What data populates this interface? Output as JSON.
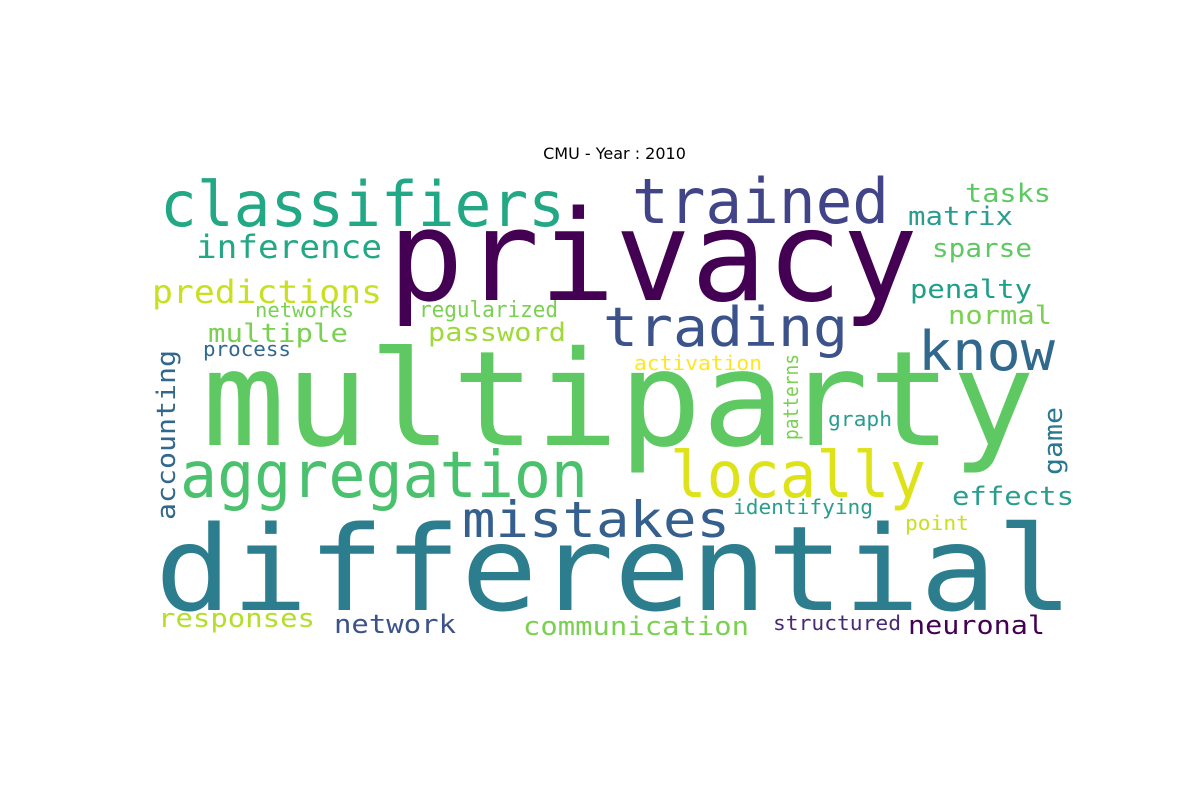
{
  "title": "CMU - Year : 2010",
  "words": [
    {
      "text": "classifiers",
      "color": "#22a884"
    },
    {
      "text": "trained",
      "color": "#414487"
    },
    {
      "text": "tasks",
      "color": "#5ec962"
    },
    {
      "text": "matrix",
      "color": "#2a9d8f"
    },
    {
      "text": "privacy",
      "color": "#440154"
    },
    {
      "text": "inference",
      "color": "#22a884"
    },
    {
      "text": "sparse",
      "color": "#5ec962"
    },
    {
      "text": "predictions",
      "color": "#c8e020"
    },
    {
      "text": "penalty",
      "color": "#1f9e89"
    },
    {
      "text": "regularized",
      "color": "#7ad151"
    },
    {
      "text": "networks",
      "color": "#7ad151"
    },
    {
      "text": "trading",
      "color": "#3b528b"
    },
    {
      "text": "normal",
      "color": "#7ad151"
    },
    {
      "text": "multiple",
      "color": "#7ad151"
    },
    {
      "text": "password",
      "color": "#a0da39"
    },
    {
      "text": "process",
      "color": "#31688e"
    },
    {
      "text": "know",
      "color": "#31688e"
    },
    {
      "text": "activation",
      "color": "#fde725"
    },
    {
      "text": "multiparty",
      "color": "#5ec962"
    },
    {
      "text": "accounting",
      "color": "#31688e"
    },
    {
      "text": "patterns",
      "color": "#7ad151"
    },
    {
      "text": "graph",
      "color": "#2a9d8f"
    },
    {
      "text": "game",
      "color": "#2a788e"
    },
    {
      "text": "aggregation",
      "color": "#4ac16d"
    },
    {
      "text": "locally",
      "color": "#dde318"
    },
    {
      "text": "effects",
      "color": "#2a9d8f"
    },
    {
      "text": "mistakes",
      "color": "#355f8d"
    },
    {
      "text": "identifying",
      "color": "#2a9d8f"
    },
    {
      "text": "point",
      "color": "#c8e020"
    },
    {
      "text": "differential",
      "color": "#2c7e8e"
    },
    {
      "text": "responses",
      "color": "#b5de2b"
    },
    {
      "text": "network",
      "color": "#3b528b"
    },
    {
      "text": "communication",
      "color": "#7ad151"
    },
    {
      "text": "structured",
      "color": "#482878"
    },
    {
      "text": "neuronal",
      "color": "#440154"
    }
  ]
}
